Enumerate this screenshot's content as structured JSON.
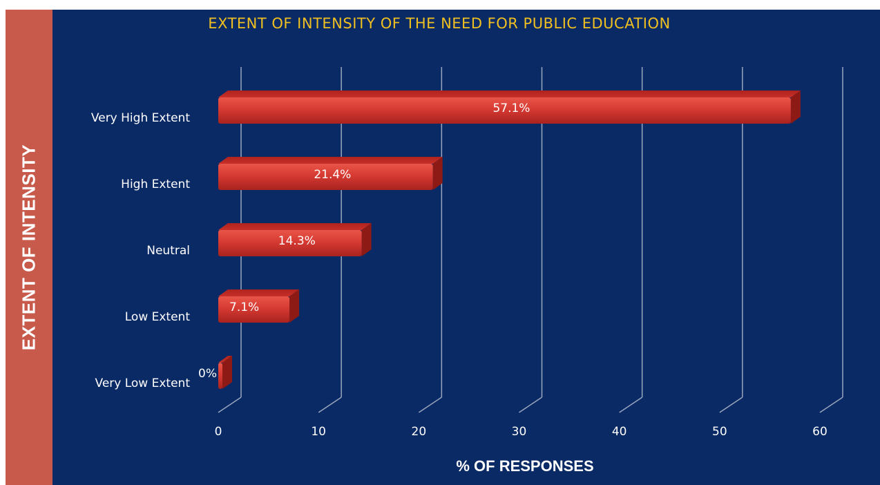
{
  "chart_data": {
    "type": "bar",
    "orientation": "horizontal",
    "title": "EXTENT OF INTENSITY OF THE NEED FOR PUBLIC EDUCATION",
    "xlabel": "% OF RESPONSES",
    "ylabel": "EXTENT OF INTENSITY",
    "categories": [
      "Very High Extent",
      "High Extent",
      "Neutral",
      "Low Extent",
      "Very Low Extent"
    ],
    "values": [
      57.1,
      21.4,
      14.3,
      7.1,
      0
    ],
    "data_labels": [
      "57.1%",
      "21.4%",
      "14.3%",
      "7.1%",
      "0%"
    ],
    "xlim": [
      0,
      60
    ],
    "xticks": [
      "0",
      "10",
      "20",
      "30",
      "40",
      "50",
      "60"
    ],
    "grid": true,
    "colors": {
      "bar": "#d63a32",
      "background": "#0a2a66",
      "side_band": "#c85a4c",
      "title": "#f0c020"
    }
  }
}
